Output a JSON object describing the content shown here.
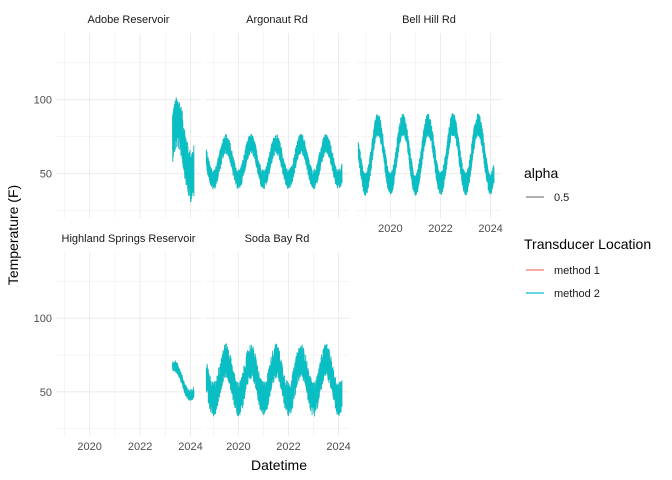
{
  "chart_data": {
    "type": "line",
    "facet_layout": "wrap 3 columns",
    "xlabel": "Datetime",
    "ylabel": "Temperature (F)",
    "x_range": [
      "2018-09-01",
      "2024-06-01"
    ],
    "y_range": [
      20,
      145
    ],
    "x_ticks": [
      {
        "value": "2020-01-01",
        "label": "2020"
      },
      {
        "value": "2022-01-01",
        "label": "2022"
      },
      {
        "value": "2024-01-01",
        "label": "2024"
      }
    ],
    "y_ticks": [
      {
        "value": 50,
        "label": "50"
      },
      {
        "value": 100,
        "label": "100"
      }
    ],
    "grid": true,
    "legend_position": "right",
    "legends": [
      {
        "title": "alpha",
        "entries": [
          {
            "label": "0.5",
            "color": "#7f7f7f"
          }
        ]
      },
      {
        "title": "Transducer Location",
        "entries": [
          {
            "label": "method 1",
            "color": "#F8766D"
          },
          {
            "label": "method 2",
            "color": "#00BFC4"
          }
        ]
      }
    ],
    "panels": [
      {
        "name": "Adobe Reservoir",
        "start": "2023-04-15",
        "end": "2024-02-20",
        "mean": 72,
        "amp": 15,
        "noise": 18,
        "peak_month": 7,
        "trend": -10
      },
      {
        "name": "Argonaut Rd",
        "start": "2018-09-20",
        "end": "2024-02-20",
        "mean": 58,
        "amp": 12,
        "noise": 7,
        "peak_month": 7,
        "trend": 0
      },
      {
        "name": "Bell Hill Rd",
        "start": "2018-09-20",
        "end": "2024-02-20",
        "mean": 63,
        "amp": 20,
        "noise": 8,
        "peak_month": 7,
        "trend": 0
      },
      {
        "name": "Highland Springs Reservoir",
        "start": "2023-04-15",
        "end": "2024-02-20",
        "mean": 63,
        "amp": 6,
        "noise": 4,
        "peak_month": 6,
        "trend": -12
      },
      {
        "name": "Soda Bay Rd",
        "start": "2018-09-20",
        "end": "2024-02-20",
        "mean": 58,
        "amp": 13,
        "noise": 12,
        "peak_month": 7,
        "trend": 0
      }
    ]
  }
}
